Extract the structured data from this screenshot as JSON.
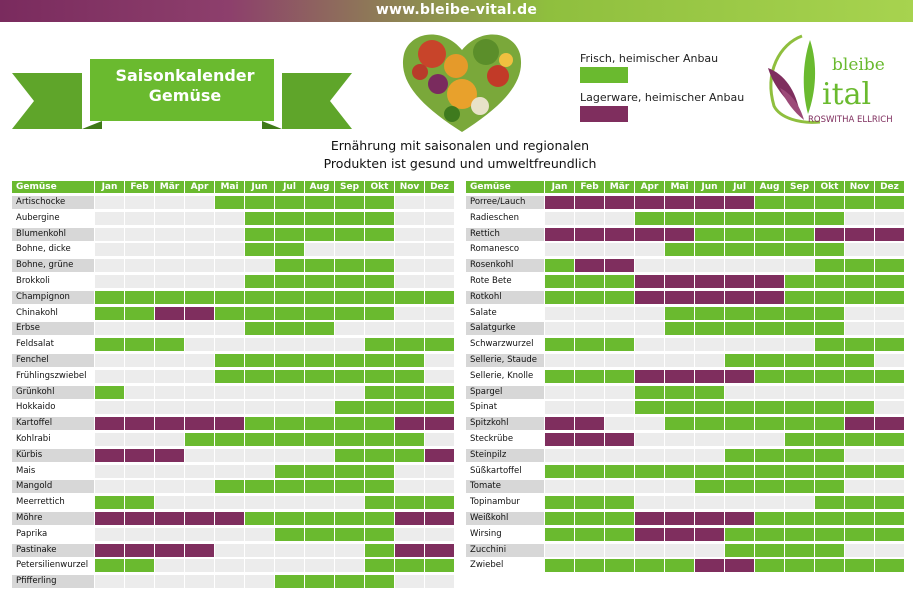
{
  "site_url": "www.bleibe-vital.de",
  "banner": {
    "line1": "Saisonkalender",
    "line2": "Gemüse"
  },
  "legend": {
    "fresh_label": "Frisch, heimischer Anbau",
    "storage_label": "Lagerware, heimischer Anbau"
  },
  "brand": {
    "name_top": "bleibe",
    "name_bottom": "ital",
    "owner": "ROSWITHA ELLRICH"
  },
  "subtitle": {
    "line1": "Ernährung mit saisonalen und regionalen",
    "line2": "Produkten ist gesund und umweltfreundlich"
  },
  "colors": {
    "fresh": "#6aba2f",
    "storage": "#7f2e5e",
    "empty": "#ececec",
    "name_alt": "#d7d7d7",
    "header": "#6aba2f"
  },
  "chart_data": {
    "type": "table",
    "title": "Saisonkalender Gemüse",
    "legend_codes": {
      "F": "Frisch, heimischer Anbau",
      "L": "Lagerware, heimischer Anbau",
      ".": ""
    },
    "column_header": "Gemüse",
    "months": [
      "Jan",
      "Feb",
      "Mär",
      "Apr",
      "Mai",
      "Jun",
      "Jul",
      "Aug",
      "Sep",
      "Okt",
      "Nov",
      "Dez"
    ],
    "tables": [
      {
        "rows": [
          {
            "name": "Artischocke",
            "months": "....FFFFFF.."
          },
          {
            "name": "Aubergine",
            "months": ".....FFFFF.."
          },
          {
            "name": "Blumenkohl",
            "months": ".....FFFFF.."
          },
          {
            "name": "Bohne, dicke",
            "months": ".....FF....."
          },
          {
            "name": "Bohne, grüne",
            "months": "......FFFF.."
          },
          {
            "name": "Brokkoli",
            "months": ".....FFFFF.."
          },
          {
            "name": "Champignon",
            "months": "FFFFFFFFFFFF"
          },
          {
            "name": "Chinakohl",
            "months": "FFLLFFFFFF.."
          },
          {
            "name": "Erbse",
            "months": ".....FFF...."
          },
          {
            "name": "Feldsalat",
            "months": "FFF......FFF"
          },
          {
            "name": "Fenchel",
            "months": "....FFFFFFF."
          },
          {
            "name": "Frühlingszwiebel",
            "months": "....FFFFFFF."
          },
          {
            "name": "Grünkohl",
            "months": "F........FFF"
          },
          {
            "name": "Hokkaido",
            "months": "........FFFF"
          },
          {
            "name": "Kartoffel",
            "months": "LLLLLFFFFFLL"
          },
          {
            "name": "Kohlrabi",
            "months": "...FFFFFFFF."
          },
          {
            "name": "Kürbis",
            "months": "LLL.....FFFL"
          },
          {
            "name": "Mais",
            "months": "......FFFF.."
          },
          {
            "name": "Mangold",
            "months": "....FFFFFF.."
          },
          {
            "name": "Meerrettich",
            "months": "FF.......FFF"
          },
          {
            "name": "Möhre",
            "months": "LLLLLFFFFFLL"
          },
          {
            "name": "Paprika",
            "months": "......FFFF.."
          },
          {
            "name": "Pastinake",
            "months": "LLLL.....FLL"
          },
          {
            "name": "Petersilienwurzel",
            "months": "FF.......FFF"
          },
          {
            "name": "Pfifferling",
            "months": "......FFFF.."
          }
        ]
      },
      {
        "rows": [
          {
            "name": "Porree/Lauch",
            "months": "LLLLLLLFFFFF"
          },
          {
            "name": "Radieschen",
            "months": "...FFFFFFF.."
          },
          {
            "name": "Rettich",
            "months": "LLLLLFFFFLLL"
          },
          {
            "name": "Romanesco",
            "months": "....FFFFFF.."
          },
          {
            "name": "Rosenkohl",
            "months": "FLL......FFF"
          },
          {
            "name": "Rote Bete",
            "months": "FFFLLLLLFFFF"
          },
          {
            "name": "Rotkohl",
            "months": "FFFLLLLLFFFF"
          },
          {
            "name": "Salate",
            "months": "....FFFFFF.."
          },
          {
            "name": "Salatgurke",
            "months": "....FFFFFF.."
          },
          {
            "name": "Schwarzwurzel",
            "months": "FFF......FFF"
          },
          {
            "name": "Sellerie, Staude",
            "months": "......FFFFF."
          },
          {
            "name": "Sellerie, Knolle",
            "months": "FFFLLLLFFFFF"
          },
          {
            "name": "Spargel",
            "months": "...FFF......"
          },
          {
            "name": "Spinat",
            "months": "...FFFFFFFF."
          },
          {
            "name": "Spitzkohl",
            "months": "LL..FFFFFFLL"
          },
          {
            "name": "Steckrübe",
            "months": "LLL.....FFFF"
          },
          {
            "name": "Steinpilz",
            "months": "......FFFF.."
          },
          {
            "name": "Süßkartoffel",
            "months": "FFFFFFFFFFFF"
          },
          {
            "name": "Tomate",
            "months": ".....FFFFF.."
          },
          {
            "name": "Topinambur",
            "months": "FFF......FFF"
          },
          {
            "name": "Weißkohl",
            "months": "FFFLLLLFFFFF"
          },
          {
            "name": "Wirsing",
            "months": "FFFLLLFFFFFF"
          },
          {
            "name": "Zucchini",
            "months": "......FFFF.."
          },
          {
            "name": "Zwiebel",
            "months": "FFFFFLLFFFFF"
          }
        ]
      }
    ]
  }
}
